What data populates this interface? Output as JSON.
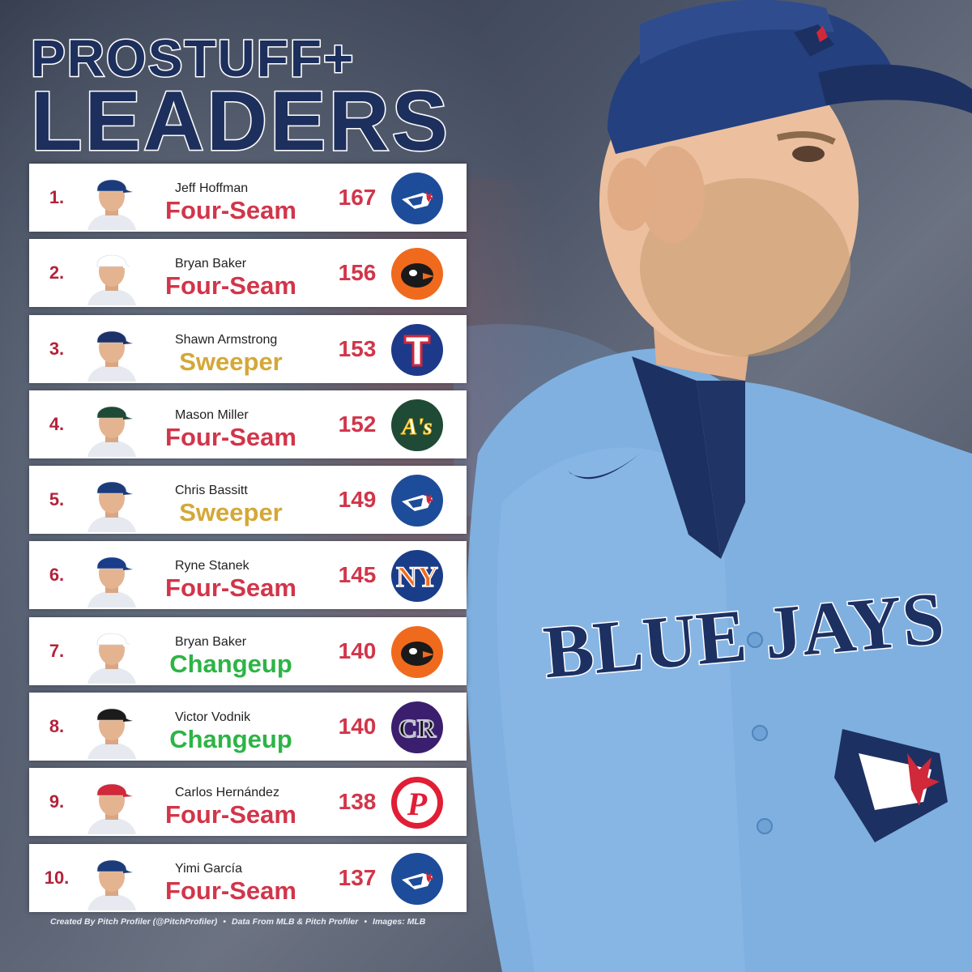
{
  "title": {
    "line1": "PROSTUFF+",
    "line2": "LEADERS"
  },
  "colors": {
    "rank": "#b3233a",
    "score": "#d2354a",
    "four_seam": "#d2354a",
    "sweeper": "#d4a838",
    "changeup": "#2db446",
    "title": "#1d2f5c"
  },
  "rows": [
    {
      "rank": "1.",
      "name": "Jeff Hoffman",
      "pitch": "Four-Seam",
      "pitch_type": "four_seam",
      "score": "167",
      "team": "blue-jays-logo-icon",
      "cap": "#1c3b7a"
    },
    {
      "rank": "2.",
      "name": "Bryan Baker",
      "pitch": "Four-Seam",
      "pitch_type": "four_seam",
      "score": "156",
      "team": "orioles-logo-icon",
      "cap": "#ffffff"
    },
    {
      "rank": "3.",
      "name": "Shawn Armstrong",
      "pitch": "Sweeper",
      "pitch_type": "sweeper",
      "score": "153",
      "team": "rangers-logo-icon",
      "cap": "#1d3268"
    },
    {
      "rank": "4.",
      "name": "Mason Miller",
      "pitch": "Four-Seam",
      "pitch_type": "four_seam",
      "score": "152",
      "team": "athletics-logo-icon",
      "cap": "#1f4a35"
    },
    {
      "rank": "5.",
      "name": "Chris Bassitt",
      "pitch": "Sweeper",
      "pitch_type": "sweeper",
      "score": "149",
      "team": "blue-jays-logo-icon",
      "cap": "#1c3b7a"
    },
    {
      "rank": "6.",
      "name": "Ryne Stanek",
      "pitch": "Four-Seam",
      "pitch_type": "four_seam",
      "score": "145",
      "team": "mets-logo-icon",
      "cap": "#1a3d8a"
    },
    {
      "rank": "7.",
      "name": "Bryan Baker",
      "pitch": "Changeup",
      "pitch_type": "changeup",
      "score": "140",
      "team": "orioles-logo-icon",
      "cap": "#ffffff"
    },
    {
      "rank": "8.",
      "name": "Victor Vodnik",
      "pitch": "Changeup",
      "pitch_type": "changeup",
      "score": "140",
      "team": "rockies-logo-icon",
      "cap": "#1b1b1b"
    },
    {
      "rank": "9.",
      "name": "Carlos Hernández",
      "pitch": "Four-Seam",
      "pitch_type": "four_seam",
      "score": "138",
      "team": "phillies-logo-icon",
      "cap": "#d1283a"
    },
    {
      "rank": "10.",
      "name": "Yimi García",
      "pitch": "Four-Seam",
      "pitch_type": "four_seam",
      "score": "137",
      "team": "blue-jays-logo-icon",
      "cap": "#1c3b7a"
    }
  ],
  "footer": {
    "created": "Created By Pitch Profiler (@PitchProfiler)",
    "sep": "•",
    "data": "Data From MLB & Pitch Profiler",
    "images": "Images: MLB"
  },
  "jersey": {
    "text": "BLUE JAYS"
  }
}
